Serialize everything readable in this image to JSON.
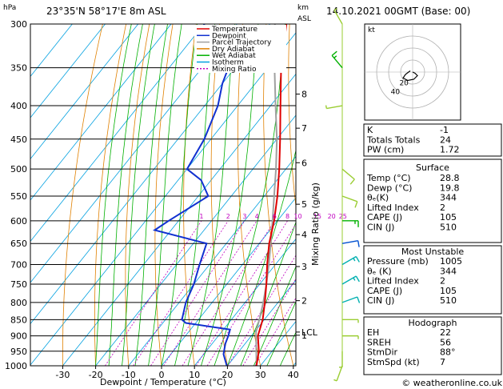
{
  "header": {
    "hpa_label": "hPa",
    "location": "23°35'N 58°17'E 8m ASL",
    "km_label": "km",
    "asl_label": "ASL",
    "datetime": "14.10.2021 00GMT (Base: 00)"
  },
  "footer": {
    "copyright": "© weatheronline.co.uk"
  },
  "chart_data": {
    "type": "skew-t",
    "xlabel": "Dewpoint / Temperature (°C)",
    "ylabel": "hPa",
    "right_axis_label": "Mixing Ratio (g/kg)",
    "x_ticks": [
      -30,
      -20,
      -10,
      0,
      10,
      20,
      30,
      40
    ],
    "pressure_levels": [
      300,
      350,
      400,
      450,
      500,
      550,
      600,
      650,
      700,
      750,
      800,
      850,
      900,
      950,
      1000
    ],
    "altitude_km_ticks": [
      {
        "label": "8",
        "p": 384
      },
      {
        "label": "7",
        "p": 433
      },
      {
        "label": "6",
        "p": 489
      },
      {
        "label": "5",
        "p": 566
      },
      {
        "label": "4",
        "p": 630
      },
      {
        "label": "3",
        "p": 705
      },
      {
        "label": "2",
        "p": 795
      },
      {
        "label": "1",
        "p": 898
      },
      {
        "label": "LCL",
        "p": 888
      }
    ],
    "mixing_ratio_labels": [
      "1",
      "2",
      "3",
      "4",
      "6",
      "8",
      "10",
      "15",
      "20",
      "25"
    ],
    "mixing_ratio_values": [
      1,
      2,
      3,
      4,
      6,
      8,
      10,
      15,
      20,
      25
    ],
    "legend": [
      {
        "name": "Temperature",
        "color": "#e00000"
      },
      {
        "name": "Dewpoint",
        "color": "#1030d0"
      },
      {
        "name": "Parcel Trajectory",
        "color": "#a0a0a0"
      },
      {
        "name": "Dry Adiabat",
        "color": "#e08000"
      },
      {
        "name": "Wet Adiabat",
        "color": "#00b000"
      },
      {
        "name": "Isotherm",
        "color": "#00a0e0"
      },
      {
        "name": "Mixing Ratio",
        "color": "#c000c0"
      }
    ],
    "temperature": [
      [
        1000,
        28.8
      ],
      [
        950,
        26
      ],
      [
        900,
        22
      ],
      [
        850,
        19.5
      ],
      [
        800,
        16
      ],
      [
        750,
        12
      ],
      [
        700,
        7.5
      ],
      [
        650,
        3
      ],
      [
        600,
        -1
      ],
      [
        550,
        -6
      ],
      [
        500,
        -12
      ],
      [
        450,
        -19
      ],
      [
        400,
        -27
      ],
      [
        350,
        -36
      ],
      [
        300,
        -45
      ]
    ],
    "dewpoint": [
      [
        1000,
        19.8
      ],
      [
        960,
        16
      ],
      [
        925,
        14
      ],
      [
        900,
        13
      ],
      [
        880,
        12
      ],
      [
        860,
        -3
      ],
      [
        850,
        -5
      ],
      [
        800,
        -8
      ],
      [
        750,
        -10
      ],
      [
        700,
        -13
      ],
      [
        650,
        -16
      ],
      [
        620,
        -35
      ],
      [
        600,
        -33
      ],
      [
        550,
        -27
      ],
      [
        520,
        -33
      ],
      [
        500,
        -40
      ],
      [
        450,
        -42
      ],
      [
        400,
        -46
      ],
      [
        370,
        -50
      ],
      [
        350,
        -52
      ],
      [
        330,
        -62
      ],
      [
        300,
        -70
      ]
    ],
    "parcel": [
      [
        1000,
        28.8
      ],
      [
        888,
        20.5
      ],
      [
        850,
        18.5
      ],
      [
        800,
        15.5
      ],
      [
        750,
        12
      ],
      [
        700,
        8
      ],
      [
        650,
        3.5
      ],
      [
        600,
        -1.5
      ],
      [
        550,
        -7
      ],
      [
        500,
        -13
      ],
      [
        450,
        -20
      ],
      [
        400,
        -28.5
      ],
      [
        350,
        -38
      ],
      [
        300,
        -48.5
      ]
    ],
    "wind_barbs": [
      {
        "p": 1000,
        "dir": 200,
        "kt": 5,
        "color": "#9acd32"
      },
      {
        "p": 950,
        "dir": 180,
        "kt": 5,
        "color": "#9acd32"
      },
      {
        "p": 900,
        "dir": 90,
        "kt": 5,
        "color": "#9acd32"
      },
      {
        "p": 850,
        "dir": 90,
        "kt": 5,
        "color": "#9acd32"
      },
      {
        "p": 800,
        "dir": 70,
        "kt": 10,
        "color": "#00b0b0"
      },
      {
        "p": 750,
        "dir": 60,
        "kt": 15,
        "color": "#00b0b0"
      },
      {
        "p": 700,
        "dir": 60,
        "kt": 15,
        "color": "#00b0b0"
      },
      {
        "p": 650,
        "dir": 80,
        "kt": 10,
        "color": "#0050d0"
      },
      {
        "p": 600,
        "dir": 90,
        "kt": 15,
        "color": "#00b000"
      },
      {
        "p": 550,
        "dir": 110,
        "kt": 10,
        "color": "#9acd32"
      },
      {
        "p": 500,
        "dir": 130,
        "kt": 10,
        "color": "#9acd32"
      },
      {
        "p": 400,
        "dir": 260,
        "kt": 5,
        "color": "#9acd32"
      },
      {
        "p": 350,
        "dir": 320,
        "kt": 15,
        "color": "#00b000"
      },
      {
        "p": 300,
        "dir": 330,
        "kt": 5,
        "color": "#9acd32"
      }
    ]
  },
  "hodograph": {
    "unit_label": "kt",
    "ring_labels": [
      "20",
      "40"
    ],
    "trace": [
      [
        0,
        0
      ],
      [
        2,
        -1
      ],
      [
        4,
        -3
      ],
      [
        1,
        -6
      ],
      [
        -4,
        -7
      ],
      [
        -8,
        -5
      ],
      [
        -6,
        -2
      ],
      [
        -2,
        1
      ]
    ]
  },
  "indices": {
    "basic": [
      {
        "label": "K",
        "value": "-1"
      },
      {
        "label": "Totals Totals",
        "value": "24"
      },
      {
        "label": "PW (cm)",
        "value": "1.72"
      }
    ],
    "surface": {
      "title": "Surface",
      "rows": [
        {
          "label": "Temp (°C)",
          "value": "28.8"
        },
        {
          "label": "Dewp (°C)",
          "value": "19.8"
        },
        {
          "label": "θₑ(K)",
          "value": "344"
        },
        {
          "label": "Lifted Index",
          "value": "2"
        },
        {
          "label": "CAPE (J)",
          "value": "105"
        },
        {
          "label": "CIN (J)",
          "value": "510"
        }
      ]
    },
    "most_unstable": {
      "title": "Most Unstable",
      "rows": [
        {
          "label": "Pressure (mb)",
          "value": "1005"
        },
        {
          "label": "θₑ (K)",
          "value": "344"
        },
        {
          "label": "Lifted Index",
          "value": "2"
        },
        {
          "label": "CAPE (J)",
          "value": "105"
        },
        {
          "label": "CIN (J)",
          "value": "510"
        }
      ]
    },
    "hodograph_box": {
      "title": "Hodograph",
      "rows": [
        {
          "label": "EH",
          "value": "22"
        },
        {
          "label": "SREH",
          "value": "56"
        },
        {
          "label": "StmDir",
          "value": "88°"
        },
        {
          "label": "StmSpd (kt)",
          "value": "7"
        }
      ]
    }
  },
  "colors": {
    "temperature": "#e00000",
    "dewpoint": "#1030d0",
    "parcel": "#a0a0a0",
    "dry_adiabat": "#e08000",
    "wet_adiabat": "#00b000",
    "isotherm": "#00a0e0",
    "mixing_ratio": "#c000c0"
  }
}
